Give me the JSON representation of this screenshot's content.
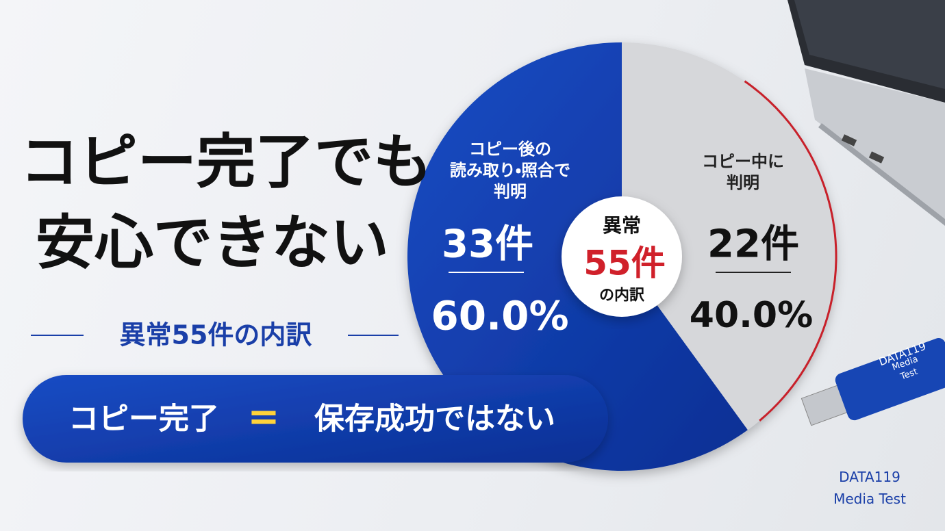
{
  "chart_data": {
    "type": "pie",
    "title_lines": [
      "コピー完了でも",
      "安心できない"
    ],
    "subtitle": "異常55件の内訳",
    "categories": [
      "コピー後の\n読み取り・照合で\n判明",
      "コピー中に\n判明"
    ],
    "values": [
      33,
      22
    ],
    "value_labels": [
      "33件",
      "22件"
    ],
    "colors": [
      "#0f3fb0",
      "#d6d7da"
    ],
    "shares": [
      {
        "value": 60,
        "label": "60.0%"
      },
      {
        "value": 40,
        "label": "40.0%"
      }
    ],
    "center": {
      "top": "異常",
      "total": {
        "value": 55,
        "label": "55件"
      },
      "bottom": "の内訳"
    },
    "banner": {
      "left": "コピー完了",
      "equals": "=",
      "right": "保存成功ではない"
    },
    "usb_label": [
      "DATA119",
      "Media Test"
    ],
    "brand": [
      "DATA119",
      "Media Test"
    ]
  }
}
